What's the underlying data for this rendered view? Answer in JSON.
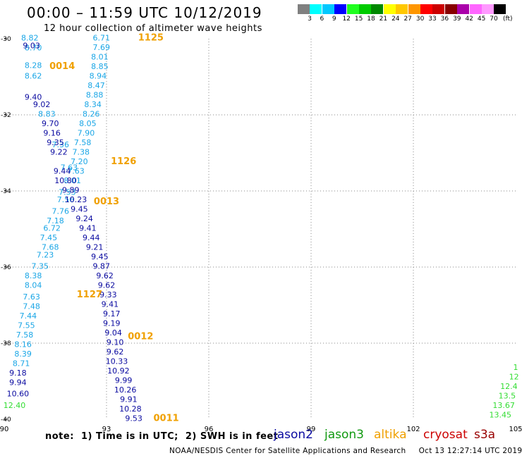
{
  "title": "00:00 – 11:59 UTC 10/12/2019",
  "subtitle": "12 hour collection of altimeter wave heights",
  "colorbar": {
    "colors": [
      "#808080",
      "#00ffff",
      "#00c8ff",
      "#0000ff",
      "#20ff20",
      "#00cc00",
      "#008800",
      "#ffff00",
      "#ffc800",
      "#ff9600",
      "#ff0000",
      "#cc0000",
      "#880000",
      "#aa00aa",
      "#ff66ff",
      "#ff99ff",
      "#000000"
    ],
    "labels": [
      "3",
      "6",
      "9",
      "12",
      "15",
      "18",
      "21",
      "24",
      "27",
      "30",
      "33",
      "36",
      "39",
      "42",
      "45",
      "70"
    ],
    "unit": "(ft)"
  },
  "colors": {
    "light_blue": "#1aa6e6",
    "dark_blue": "#0a0aa0",
    "orange": "#f0a000",
    "green": "#33dd33",
    "red": "#cc0000",
    "maroon": "#990000",
    "grid": "#888888"
  },
  "note": "note:  1) Time is in UTC;  2) SWH is in feet",
  "legend": {
    "jason2": "jason2",
    "jason3": "jason3",
    "altika": "altika",
    "cryosat": "cryosat",
    "s3a": "s3a"
  },
  "credit": "NOAA/NESDIS Center for Satellite Applications and Research     Oct 13 12:27:14 UTC 2019",
  "chart_data": {
    "type": "scatter",
    "title": "00:00 – 11:59 UTC 10/12/2019",
    "subtitle": "12 hour collection of altimeter wave heights",
    "xlabel": "",
    "ylabel": "",
    "xlim": [
      90,
      105
    ],
    "ylim": [
      -40,
      -30
    ],
    "x_ticks": [
      "90",
      "93",
      "96",
      "99",
      "102",
      "105"
    ],
    "y_ticks": [
      "-30",
      "-32",
      "-34",
      "-36",
      "-38",
      "-40"
    ],
    "grid": "dotted",
    "series": [
      {
        "name": "altika",
        "color": "#1aa6e6",
        "points": [
          [
            90.75,
            -30.05,
            "8.82"
          ],
          [
            90.85,
            -30.31,
            "8.70"
          ],
          [
            90.85,
            -30.77,
            "8.28"
          ],
          [
            90.85,
            -31.05,
            "8.62"
          ],
          [
            91.25,
            -32.05,
            "8.83"
          ],
          [
            91.65,
            -32.85,
            "7.36"
          ],
          [
            91.9,
            -33.45,
            "7.63"
          ],
          [
            91.85,
            -34.1,
            "7.53"
          ],
          [
            91.8,
            -34.3,
            "7.56"
          ],
          [
            91.65,
            -34.6,
            "7.76"
          ],
          [
            91.5,
            -34.85,
            "7.18"
          ],
          [
            91.4,
            -35.05,
            "6.72"
          ],
          [
            91.3,
            -35.3,
            "7.45"
          ],
          [
            91.35,
            -35.55,
            "7.68"
          ],
          [
            91.2,
            -35.75,
            "7.23"
          ],
          [
            91.05,
            -36.05,
            "7.35"
          ],
          [
            90.85,
            -36.3,
            "8.38"
          ],
          [
            90.85,
            -36.55,
            "8.04"
          ],
          [
            90.8,
            -36.85,
            "7.63"
          ],
          [
            90.8,
            -37.1,
            "7.48"
          ],
          [
            90.7,
            -37.35,
            "7.44"
          ],
          [
            90.65,
            -37.6,
            "7.55"
          ],
          [
            90.6,
            -37.85,
            "7.58"
          ],
          [
            90.55,
            -38.1,
            "8.16"
          ],
          [
            90.55,
            -38.35,
            "8.39"
          ],
          [
            90.5,
            -38.6,
            "8.71"
          ]
        ]
      },
      {
        "name": "altika",
        "color": "#1aa6e6",
        "points": [
          [
            92.85,
            -30.05,
            "6.71"
          ],
          [
            92.85,
            -30.3,
            "7.69"
          ],
          [
            92.8,
            -30.55,
            "8.01"
          ],
          [
            92.8,
            -30.8,
            "8.85"
          ],
          [
            92.75,
            -31.05,
            "8.94"
          ],
          [
            92.7,
            -31.3,
            "8.47"
          ],
          [
            92.65,
            -31.55,
            "8.88"
          ],
          [
            92.6,
            -31.8,
            "8.34"
          ],
          [
            92.55,
            -32.05,
            "8.26"
          ],
          [
            92.45,
            -32.3,
            "8.05"
          ],
          [
            92.4,
            -32.55,
            "7.90"
          ],
          [
            92.3,
            -32.8,
            "7.58"
          ],
          [
            92.25,
            -33.05,
            "7.38"
          ],
          [
            92.2,
            -33.3,
            "7.20"
          ],
          [
            92.1,
            -33.55,
            "7.63"
          ],
          [
            92.0,
            -33.8,
            "8.01"
          ]
        ]
      },
      {
        "name": "jason2",
        "color": "#0a0aa0",
        "points": [
          [
            90.8,
            -30.25,
            "9.03"
          ],
          [
            90.85,
            -31.6,
            "9.40"
          ],
          [
            91.1,
            -31.8,
            "9.02"
          ],
          [
            91.35,
            -32.3,
            "9.70"
          ],
          [
            91.4,
            -32.55,
            "9.16"
          ],
          [
            91.5,
            -32.8,
            "9.35"
          ],
          [
            91.6,
            -33.05,
            "9.22"
          ],
          [
            91.7,
            -33.55,
            "9.44"
          ],
          [
            91.8,
            -33.8,
            "10.80"
          ],
          [
            91.95,
            -34.05,
            "9.89"
          ],
          [
            92.1,
            -34.3,
            "10.23"
          ],
          [
            92.2,
            -34.55,
            "9.45"
          ],
          [
            92.35,
            -34.8,
            "9.24"
          ],
          [
            92.45,
            -35.05,
            "9.41"
          ],
          [
            92.55,
            -35.3,
            "9.44"
          ],
          [
            92.65,
            -35.55,
            "9.21"
          ],
          [
            92.8,
            -35.8,
            "9.45"
          ],
          [
            92.85,
            -36.05,
            "9.87"
          ],
          [
            92.95,
            -36.3,
            "9.62"
          ],
          [
            93.0,
            -36.55,
            "9.62"
          ],
          [
            93.05,
            -36.8,
            "9.33"
          ],
          [
            93.1,
            -37.05,
            "9.41"
          ],
          [
            93.15,
            -37.3,
            "9.17"
          ],
          [
            93.15,
            -37.55,
            "9.19"
          ],
          [
            93.2,
            -37.8,
            "9.04"
          ],
          [
            93.25,
            -38.05,
            "9.10"
          ],
          [
            93.25,
            -38.3,
            "9.62"
          ],
          [
            93.3,
            -38.55,
            "10.33"
          ],
          [
            93.35,
            -38.8,
            "10.92"
          ],
          [
            93.5,
            -39.05,
            "9.99"
          ],
          [
            93.55,
            -39.3,
            "10.26"
          ],
          [
            93.65,
            -39.55,
            "9.91"
          ],
          [
            93.7,
            -39.8,
            "10.28"
          ],
          [
            93.8,
            -40.05,
            "9.53"
          ],
          [
            90.4,
            -38.85,
            "9.18"
          ],
          [
            90.4,
            -39.1,
            "9.94"
          ],
          [
            90.4,
            -39.4,
            "10.60"
          ]
        ]
      },
      {
        "name": "jason3",
        "color": "#33dd33",
        "points": [
          [
            90.3,
            -39.7,
            "12.40"
          ],
          [
            104.55,
            -39.95,
            "13.45"
          ],
          [
            104.65,
            -39.7,
            "13.67"
          ],
          [
            104.75,
            -39.45,
            "13.5"
          ],
          [
            104.8,
            -39.2,
            "12.4"
          ],
          [
            104.95,
            -38.95,
            "12"
          ],
          [
            105.0,
            -38.7,
            "1"
          ]
        ]
      }
    ],
    "annotations": [
      {
        "text": "1125",
        "x": 94.3,
        "y": -30.05
      },
      {
        "text": "0014",
        "x": 91.7,
        "y": -30.8
      },
      {
        "text": "1126",
        "x": 93.5,
        "y": -33.3
      },
      {
        "text": "0013",
        "x": 93.0,
        "y": -34.35
      },
      {
        "text": "1127",
        "x": 92.5,
        "y": -36.8
      },
      {
        "text": "0012",
        "x": 94.0,
        "y": -37.9
      },
      {
        "text": "0011",
        "x": 94.75,
        "y": -40.05
      }
    ]
  }
}
